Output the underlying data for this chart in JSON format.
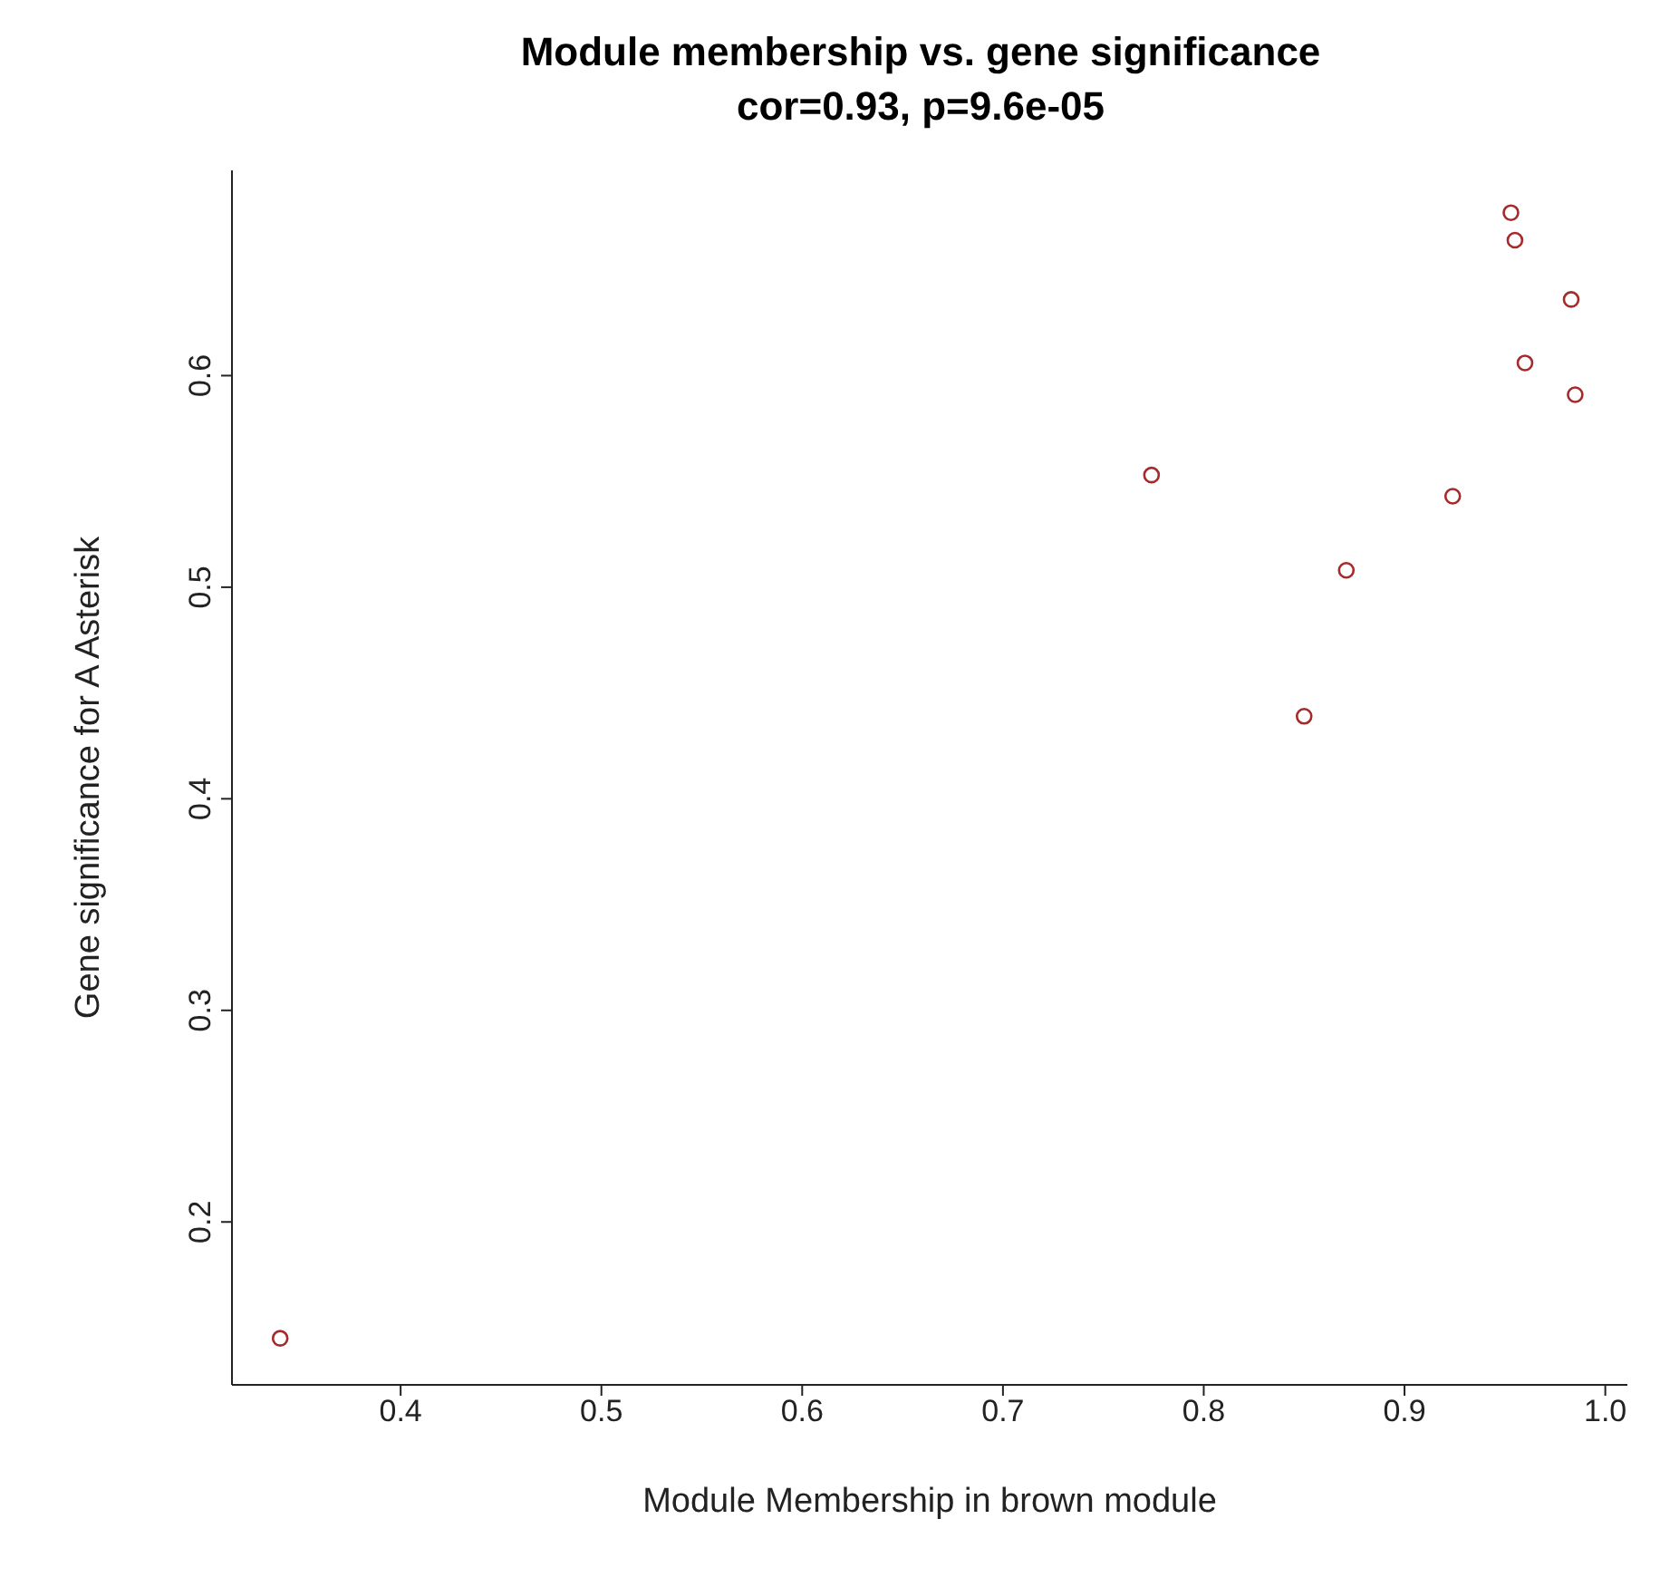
{
  "chart_data": {
    "type": "scatter",
    "title": "Module membership vs. gene significance",
    "subtitle": "cor=0.93, p=9.6e-05",
    "xlabel": "Module Membership in brown module",
    "ylabel": "Gene significance for A Asterisk",
    "x": [
      0.34,
      0.774,
      0.85,
      0.871,
      0.924,
      0.953,
      0.955,
      0.96,
      0.983,
      0.985
    ],
    "values": [
      0.145,
      0.553,
      0.439,
      0.508,
      0.543,
      0.677,
      0.664,
      0.606,
      0.636,
      0.591
    ],
    "color": "#a52a2a",
    "marker": "circle",
    "xlim": [
      0.316,
      1.011
    ],
    "ylim": [
      0.123,
      0.697
    ],
    "xticks": [
      0.4,
      0.5,
      0.6,
      0.7,
      0.8,
      0.9,
      {
        "value": 1,
        "label": "1.0"
      }
    ],
    "yticks": [
      0.2,
      0.3,
      0.4,
      0.5,
      0.6
    ],
    "grid": false,
    "legend": false
  }
}
